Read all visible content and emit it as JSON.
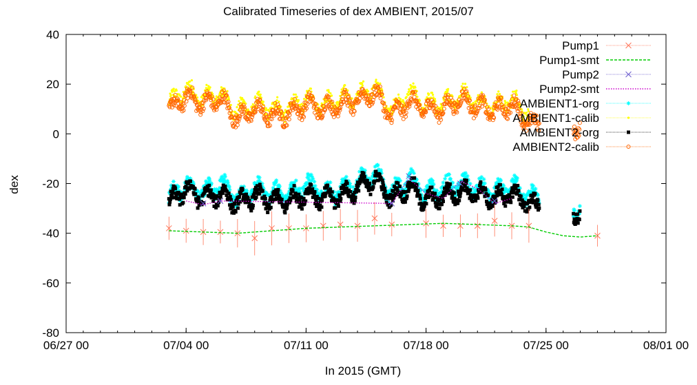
{
  "chart_data": {
    "type": "scatter",
    "title": "Calibrated Timeseries of dex AMBIENT, 2015/07",
    "xlabel": "In 2015 (GMT)",
    "ylabel": "dex",
    "xlim": [
      "2015-06-27",
      "2015-08-01"
    ],
    "ylim": [
      -80,
      40
    ],
    "x_ticks": [
      "06/27 00",
      "07/04 00",
      "07/11 00",
      "07/18 00",
      "07/25 00",
      "08/01 00"
    ],
    "y_ticks": [
      40,
      20,
      0,
      -20,
      -40,
      -60,
      -80
    ],
    "grid": false,
    "legend_position": "top-right",
    "series": [
      {
        "name": "Pump1",
        "style": "points-with-errorbars",
        "marker": "x",
        "color": "#ff7355",
        "x": [
          "2015-07-03",
          "2015-07-04",
          "2015-07-05",
          "2015-07-06",
          "2015-07-07",
          "2015-07-08",
          "2015-07-09",
          "2015-07-10",
          "2015-07-11",
          "2015-07-12",
          "2015-07-13",
          "2015-07-14",
          "2015-07-15",
          "2015-07-16",
          "2015-07-18",
          "2015-07-19",
          "2015-07-20",
          "2015-07-21",
          "2015-07-22",
          "2015-07-23",
          "2015-07-24",
          "2015-07-28"
        ],
        "y": [
          -38,
          -39,
          -39.5,
          -39.5,
          -40,
          -42,
          -38,
          -38,
          -38,
          -37,
          -36.5,
          -37,
          -34,
          -36.5,
          -36,
          -37,
          -37,
          -37,
          -35,
          -37,
          -37,
          -41
        ]
      },
      {
        "name": "Pump1-smt",
        "style": "dashed-line",
        "color": "#00cc00",
        "x": [
          "2015-07-03",
          "2015-07-05",
          "2015-07-07",
          "2015-07-09",
          "2015-07-11",
          "2015-07-13",
          "2015-07-15",
          "2015-07-17",
          "2015-07-19",
          "2015-07-21",
          "2015-07-23",
          "2015-07-24",
          "2015-07-25",
          "2015-07-26",
          "2015-07-27",
          "2015-07-28"
        ],
        "y": [
          -39,
          -39.5,
          -40,
          -39,
          -38,
          -37.5,
          -37,
          -36.5,
          -36,
          -36.5,
          -37,
          -37.5,
          -39.5,
          -41,
          -41.5,
          -41
        ]
      },
      {
        "name": "Pump2",
        "style": "points",
        "marker": "x",
        "color": "#6a5acd",
        "x": [
          "2015-07-05",
          "2015-07-06",
          "2015-07-16",
          "2015-07-17",
          "2015-07-20",
          "2015-07-22"
        ],
        "y": [
          -28,
          -27,
          -28,
          -17,
          -20,
          -27
        ]
      },
      {
        "name": "Pump2-smt",
        "style": "dotted-line",
        "color": "#cc00cc",
        "x": [
          "2015-07-04",
          "2015-07-05",
          "2015-07-06",
          "2015-07-16",
          "2015-07-17",
          "2015-07-18",
          "2015-07-19",
          "2015-07-20",
          "2015-07-21",
          "2015-07-22",
          "2015-07-23"
        ],
        "y": [
          -27,
          -28.5,
          -27,
          -28,
          -18,
          -24,
          -26,
          -19,
          -22,
          -28,
          -26
        ]
      },
      {
        "name": "AMBIENT1-org",
        "style": "dense-points",
        "marker": "star",
        "color": "#00ffff",
        "x": [
          "2015-07-03",
          "2015-07-04",
          "2015-07-05",
          "2015-07-06",
          "2015-07-07",
          "2015-07-08",
          "2015-07-09",
          "2015-07-10",
          "2015-07-11",
          "2015-07-12",
          "2015-07-13",
          "2015-07-14",
          "2015-07-15",
          "2015-07-16",
          "2015-07-17",
          "2015-07-18",
          "2015-07-19",
          "2015-07-20",
          "2015-07-21",
          "2015-07-22",
          "2015-07-23",
          "2015-07-24",
          "2015-07-27"
        ],
        "y": [
          -26,
          -20,
          -24,
          -20,
          -26,
          -22,
          -24,
          -24,
          -20,
          -24,
          -23,
          -20,
          -16,
          -24,
          -18,
          -24,
          -22,
          -20,
          -22,
          -24,
          -21,
          -25,
          -31
        ]
      },
      {
        "name": "AMBIENT1-calib",
        "style": "dense-points",
        "marker": "dot",
        "color": "#ffff00",
        "x": [
          "2015-07-03",
          "2015-07-04",
          "2015-07-05",
          "2015-07-06",
          "2015-07-07",
          "2015-07-08",
          "2015-07-09",
          "2015-07-10",
          "2015-07-11",
          "2015-07-12",
          "2015-07-13",
          "2015-07-14",
          "2015-07-15",
          "2015-07-16",
          "2015-07-17",
          "2015-07-18",
          "2015-07-19",
          "2015-07-20",
          "2015-07-21",
          "2015-07-22",
          "2015-07-23",
          "2015-07-24"
        ],
        "y": [
          12,
          18,
          14,
          16,
          9,
          12,
          10,
          10,
          14,
          12,
          14,
          15,
          19,
          9,
          16,
          12,
          12,
          16,
          13,
          11,
          14,
          8
        ]
      },
      {
        "name": "AMBIENT2-org",
        "style": "dense-points",
        "marker": "square",
        "color": "#000000",
        "x": [
          "2015-07-03",
          "2015-07-04",
          "2015-07-05",
          "2015-07-06",
          "2015-07-07",
          "2015-07-08",
          "2015-07-09",
          "2015-07-10",
          "2015-07-11",
          "2015-07-12",
          "2015-07-13",
          "2015-07-14",
          "2015-07-15",
          "2015-07-16",
          "2015-07-17",
          "2015-07-18",
          "2015-07-19",
          "2015-07-20",
          "2015-07-21",
          "2015-07-22",
          "2015-07-23",
          "2015-07-24",
          "2015-07-27"
        ],
        "y": [
          -28,
          -22,
          -26,
          -24,
          -28,
          -25,
          -27,
          -27,
          -24,
          -26,
          -25,
          -22,
          -18,
          -26,
          -21,
          -27,
          -25,
          -23,
          -24,
          -26,
          -24,
          -28,
          -32
        ]
      },
      {
        "name": "AMBIENT2-calib",
        "style": "dense-points",
        "marker": "circle",
        "color": "#ff6600",
        "x": [
          "2015-07-03",
          "2015-07-04",
          "2015-07-05",
          "2015-07-06",
          "2015-07-07",
          "2015-07-08",
          "2015-07-09",
          "2015-07-10",
          "2015-07-11",
          "2015-07-12",
          "2015-07-13",
          "2015-07-14",
          "2015-07-15",
          "2015-07-16",
          "2015-07-17",
          "2015-07-18",
          "2015-07-19",
          "2015-07-20",
          "2015-07-21",
          "2015-07-22",
          "2015-07-23",
          "2015-07-24",
          "2015-07-27"
        ],
        "y": [
          9,
          15,
          12,
          14,
          6,
          10,
          7,
          8,
          12,
          10,
          12,
          13,
          17,
          7,
          13,
          10,
          10,
          14,
          11,
          9,
          12,
          4,
          3
        ]
      }
    ]
  }
}
